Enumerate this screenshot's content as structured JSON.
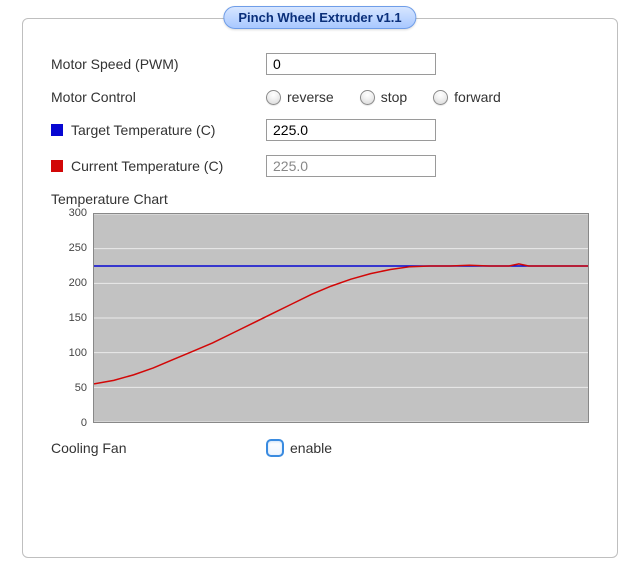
{
  "panel": {
    "title": "Pinch Wheel Extruder v1.1"
  },
  "motor_speed": {
    "label": "Motor Speed (PWM)",
    "value": "0"
  },
  "motor_control": {
    "label": "Motor Control",
    "options": {
      "reverse": "reverse",
      "stop": "stop",
      "forward": "forward"
    },
    "selected": null
  },
  "target_temp": {
    "label": "Target Temperature (C)",
    "value": "225.0",
    "swatch_color": "#0707d2"
  },
  "current_temp": {
    "label": "Current Temperature (C)",
    "value": "225.0",
    "swatch_color": "#d20707"
  },
  "cooling_fan": {
    "label": "Cooling Fan",
    "checkbox_label": "enable",
    "checked": false
  },
  "chart": {
    "title": "Temperature Chart",
    "type": "line",
    "ylim": [
      0,
      300
    ],
    "ytick_step": 50,
    "yticks": [
      "0",
      "50",
      "100",
      "150",
      "200",
      "250",
      "300"
    ],
    "background_color": "#c2c2c2",
    "grid_color": "#eaeaea",
    "axis_color": "#888888",
    "target_line": {
      "value": 225,
      "color": "#0707d2",
      "width": 1.5
    },
    "current_series": {
      "color": "#d20707",
      "width": 1.5,
      "points": [
        [
          0.0,
          55
        ],
        [
          0.04,
          60
        ],
        [
          0.08,
          68
        ],
        [
          0.12,
          78
        ],
        [
          0.16,
          90
        ],
        [
          0.2,
          102
        ],
        [
          0.24,
          114
        ],
        [
          0.28,
          128
        ],
        [
          0.32,
          142
        ],
        [
          0.36,
          156
        ],
        [
          0.4,
          170
        ],
        [
          0.44,
          184
        ],
        [
          0.48,
          196
        ],
        [
          0.52,
          206
        ],
        [
          0.56,
          214
        ],
        [
          0.6,
          220
        ],
        [
          0.64,
          224
        ],
        [
          0.68,
          225
        ],
        [
          0.72,
          225
        ],
        [
          0.76,
          226
        ],
        [
          0.8,
          225
        ],
        [
          0.84,
          225
        ],
        [
          0.86,
          228
        ],
        [
          0.88,
          225
        ],
        [
          0.92,
          225
        ],
        [
          0.96,
          225
        ],
        [
          1.0,
          225
        ]
      ]
    },
    "tick_label_fontsize": 11
  }
}
